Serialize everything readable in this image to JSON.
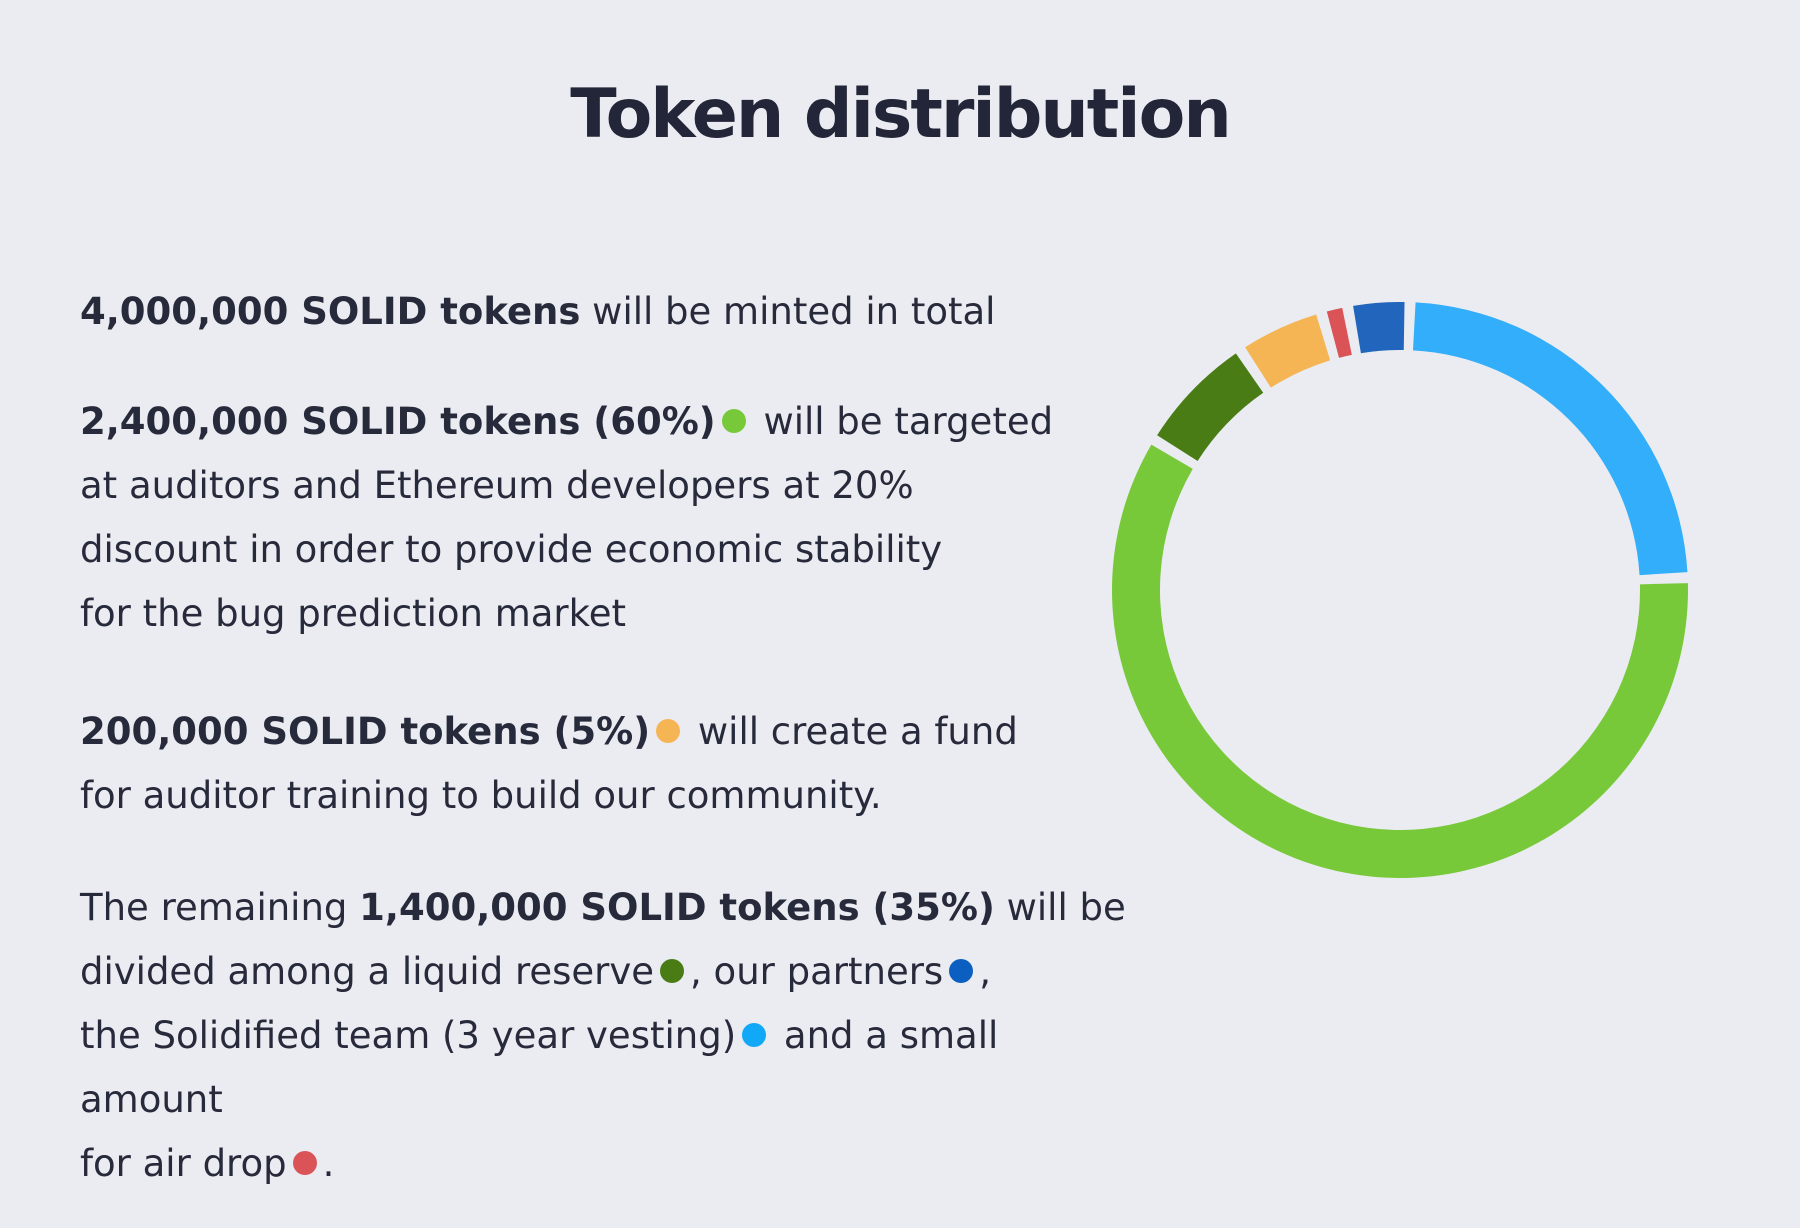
{
  "title": "Token distribution",
  "paragraphs": {
    "p1": {
      "bold": "4,000,000 SOLID tokens",
      "rest": " will be minted in total"
    },
    "p2": {
      "bold": "2,400,000 SOLID tokens (60%)",
      "line1_rest": " will be targeted",
      "line2": "at auditors and Ethereum developers at 20%",
      "line3": "discount in order to provide economic stability",
      "line4": "for the bug prediction market"
    },
    "p3": {
      "bold": "200,000 SOLID tokens (5%)",
      "line1_rest": " will create a fund",
      "line2": "for auditor training to build our community."
    },
    "p4": {
      "pre": "The remaining ",
      "bold": "1,400,000 SOLID tokens (35%)",
      "post": " will be",
      "l2a": "divided among a liquid reserve",
      "l2b": ", our partners",
      "l2c": ",",
      "l3a": "the Solidified team (3 year vesting)",
      "l3b": " and a small amount",
      "l4a": "for air drop",
      "l4b": "."
    }
  },
  "colors": {
    "auditors": "#78c93a",
    "training": "#f5b554",
    "liquid_reserve": "#4a7c16",
    "partners": "#2166bc",
    "team": "#33aefa",
    "air_drop": "#da5357"
  },
  "chart_data": {
    "type": "donut",
    "title": "",
    "segments": [
      {
        "key": "team",
        "value": 24,
        "color": "#33aefa"
      },
      {
        "key": "auditors",
        "value": 60,
        "color": "#78c93a"
      },
      {
        "key": "liquid_reserve",
        "value": 7,
        "color": "#4a7c16"
      },
      {
        "key": "training",
        "value": 5,
        "color": "#f5b554"
      },
      {
        "key": "air_drop",
        "value": 1.5,
        "color": "#da5357"
      },
      {
        "key": "partners",
        "value": 3.5,
        "color": "#2166bc"
      }
    ],
    "start_angle_deg": 2,
    "gap_deg": 2.2
  }
}
